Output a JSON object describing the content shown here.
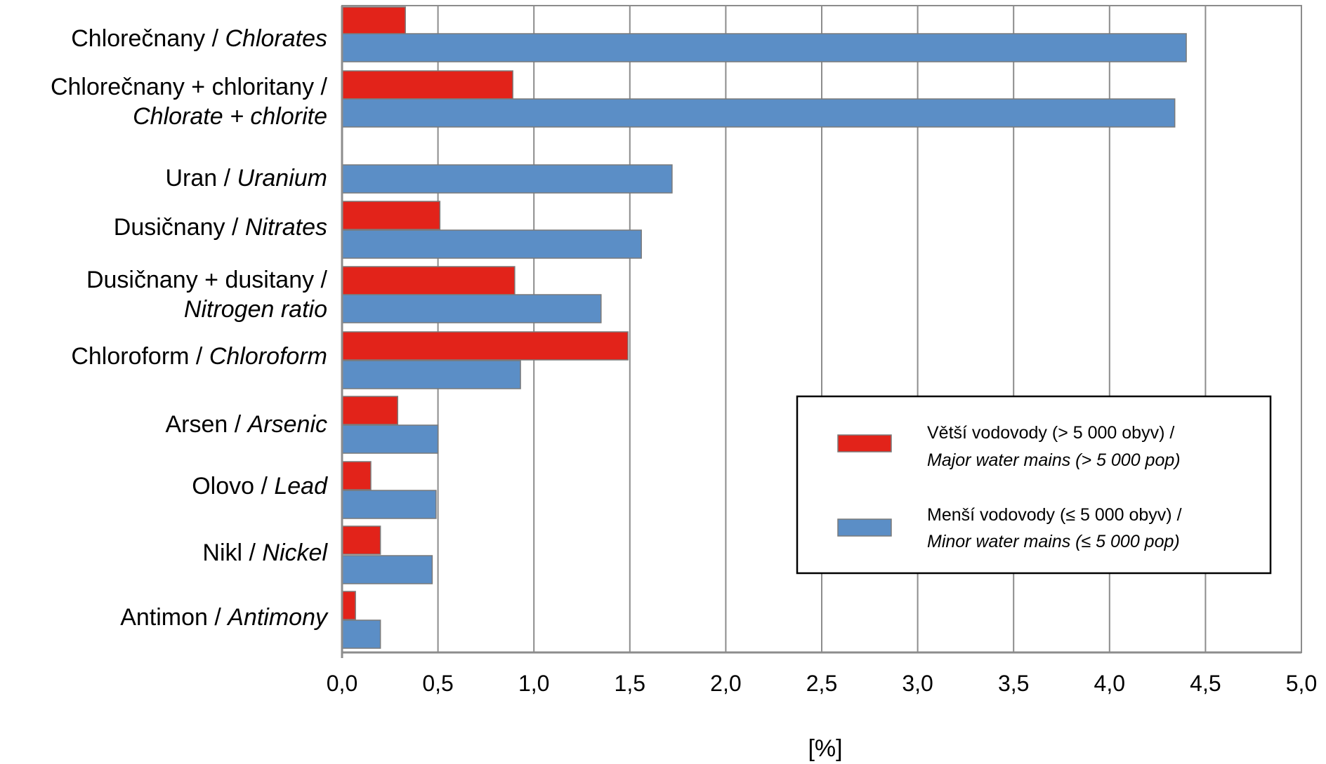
{
  "chart_data": {
    "type": "bar",
    "orientation": "horizontal",
    "categories": [
      {
        "lines": [
          [
            {
              "t": "Chlorečnany / "
            },
            {
              "t": "Chlorates",
              "i": true
            }
          ]
        ]
      },
      {
        "lines": [
          [
            {
              "t": "Chlorečnany + chloritany /"
            }
          ],
          [
            {
              "t": "Chlorate + chlorite",
              "i": true
            }
          ]
        ]
      },
      {
        "lines": [
          [
            {
              "t": "Uran / "
            },
            {
              "t": "Uranium",
              "i": true
            }
          ]
        ]
      },
      {
        "lines": [
          [
            {
              "t": "Dusičnany / "
            },
            {
              "t": "Nitrates",
              "i": true
            }
          ]
        ]
      },
      {
        "lines": [
          [
            {
              "t": "Dusičnany + dusitany /"
            }
          ],
          [
            {
              "t": "Nitrogen ratio",
              "i": true
            }
          ]
        ]
      },
      {
        "lines": [
          [
            {
              "t": "Chloroform / "
            },
            {
              "t": "Chloroform",
              "i": true
            }
          ]
        ]
      },
      {
        "lines": [
          [
            {
              "t": "Arsen / "
            },
            {
              "t": "Arsenic",
              "i": true
            }
          ]
        ]
      },
      {
        "lines": [
          [
            {
              "t": "Olovo / "
            },
            {
              "t": "Lead",
              "i": true
            }
          ]
        ]
      },
      {
        "lines": [
          [
            {
              "t": "Nikl / "
            },
            {
              "t": "Nickel",
              "i": true
            }
          ]
        ]
      },
      {
        "lines": [
          [
            {
              "t": "Antimon / "
            },
            {
              "t": "Antimony",
              "i": true
            }
          ]
        ]
      }
    ],
    "series": [
      {
        "name": "Větší vodovody (> 5 000 obyv) / Major water mains (> 5 000 pop)",
        "legend_lines": [
          "Větší vodovody (> 5 000 obyv) /",
          "Major water mains (> 5 000 pop)"
        ],
        "color": "#e2231a",
        "values": [
          0.33,
          0.89,
          null,
          0.51,
          0.9,
          1.49,
          0.29,
          0.15,
          0.2,
          0.07
        ]
      },
      {
        "name": "Menší vodovody (≤ 5 000 obyv) / Minor water mains (≤ 5 000 pop)",
        "legend_lines": [
          "Menší vodovody (≤ 5 000 obyv) /",
          "Minor water mains (≤ 5 000 pop)"
        ],
        "color": "#5b8ec6",
        "values": [
          4.4,
          4.34,
          1.72,
          1.56,
          1.35,
          0.93,
          0.5,
          0.49,
          0.47,
          0.2
        ]
      }
    ],
    "xlim": [
      0,
      5
    ],
    "xticks": [
      "0,0",
      "0,5",
      "1,0",
      "1,5",
      "2,0",
      "2,5",
      "3,0",
      "3,5",
      "4,0",
      "4,5",
      "5,0"
    ],
    "xlabel": "[%]",
    "ylabel": "",
    "title": "",
    "grid": "vertical",
    "legend_position": "lower-right"
  }
}
